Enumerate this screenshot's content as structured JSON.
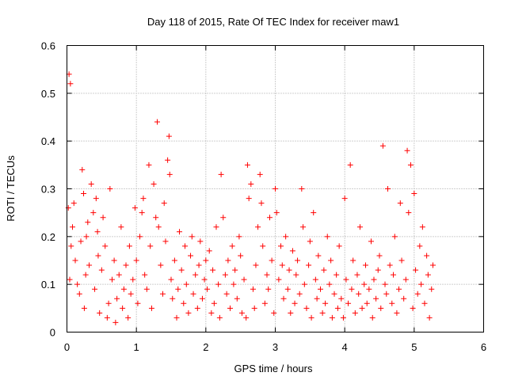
{
  "chart_data": {
    "type": "scatter",
    "title": "Day 118 of 2015, Rate Of TEC Index for receiver maw1",
    "xlabel": "GPS time / hours",
    "ylabel": "ROTI / TECUs",
    "xlim": [
      0,
      6
    ],
    "ylim": [
      0,
      0.6
    ],
    "x_ticks": [
      0,
      1,
      2,
      3,
      4,
      5,
      6
    ],
    "x_tick_labels": [
      "0",
      "1",
      "2",
      "3",
      "4",
      "5",
      "6"
    ],
    "y_ticks": [
      0,
      0.1,
      0.2,
      0.3,
      0.4,
      0.5,
      0.6
    ],
    "y_tick_labels": [
      "0",
      "0.1",
      "0.2",
      "0.3",
      "0.4",
      "0.5",
      "0.6"
    ],
    "grid": true,
    "marker": "+",
    "series_color": "#ff0000",
    "series": [
      {
        "name": "ROTI",
        "x": [
          0.02,
          0.03,
          0.05,
          0.04,
          0.06,
          0.08,
          0.1,
          0.12,
          0.15,
          0.18,
          0.2,
          0.22,
          0.24,
          0.25,
          0.27,
          0.28,
          0.3,
          0.32,
          0.35,
          0.38,
          0.4,
          0.42,
          0.44,
          0.45,
          0.47,
          0.5,
          0.52,
          0.55,
          0.58,
          0.6,
          0.62,
          0.65,
          0.68,
          0.7,
          0.72,
          0.75,
          0.78,
          0.8,
          0.82,
          0.85,
          0.88,
          0.9,
          0.92,
          0.95,
          0.98,
          1.0,
          1.02,
          1.05,
          1.08,
          1.1,
          1.12,
          1.15,
          1.18,
          1.2,
          1.22,
          1.25,
          1.28,
          1.3,
          1.32,
          1.35,
          1.38,
          1.4,
          1.42,
          1.45,
          1.47,
          1.48,
          1.5,
          1.52,
          1.55,
          1.58,
          1.6,
          1.62,
          1.65,
          1.68,
          1.7,
          1.72,
          1.75,
          1.78,
          1.8,
          1.82,
          1.85,
          1.88,
          1.9,
          1.92,
          1.95,
          1.98,
          2.0,
          2.02,
          2.05,
          2.08,
          2.1,
          2.12,
          2.15,
          2.18,
          2.2,
          2.22,
          2.25,
          2.28,
          2.3,
          2.32,
          2.35,
          2.38,
          2.4,
          2.42,
          2.45,
          2.48,
          2.5,
          2.52,
          2.55,
          2.58,
          2.6,
          2.62,
          2.65,
          2.68,
          2.7,
          2.72,
          2.75,
          2.78,
          2.8,
          2.82,
          2.85,
          2.88,
          2.9,
          2.92,
          2.95,
          2.98,
          3.0,
          3.02,
          3.05,
          3.08,
          3.1,
          3.12,
          3.15,
          3.18,
          3.2,
          3.22,
          3.25,
          3.28,
          3.3,
          3.32,
          3.35,
          3.38,
          3.4,
          3.42,
          3.45,
          3.48,
          3.5,
          3.52,
          3.55,
          3.58,
          3.6,
          3.62,
          3.65,
          3.68,
          3.7,
          3.72,
          3.75,
          3.78,
          3.8,
          3.82,
          3.85,
          3.88,
          3.9,
          3.92,
          3.95,
          3.98,
          4.0,
          4.02,
          4.05,
          4.08,
          4.1,
          4.12,
          4.15,
          4.18,
          4.2,
          4.22,
          4.25,
          4.28,
          4.3,
          4.32,
          4.35,
          4.38,
          4.4,
          4.42,
          4.45,
          4.48,
          4.5,
          4.52,
          4.55,
          4.58,
          4.6,
          4.62,
          4.65,
          4.68,
          4.7,
          4.72,
          4.75,
          4.78,
          4.8,
          4.82,
          4.85,
          4.88,
          4.9,
          4.92,
          4.95,
          4.98,
          5.0,
          5.02,
          5.05,
          5.08,
          5.1,
          5.12,
          5.15,
          5.18,
          5.2,
          5.22,
          5.25,
          5.27
        ],
        "y": [
          0.26,
          0.54,
          0.52,
          0.11,
          0.18,
          0.22,
          0.27,
          0.15,
          0.1,
          0.08,
          0.19,
          0.34,
          0.29,
          0.05,
          0.12,
          0.2,
          0.23,
          0.14,
          0.31,
          0.25,
          0.09,
          0.28,
          0.21,
          0.16,
          0.04,
          0.13,
          0.24,
          0.18,
          0.03,
          0.06,
          0.3,
          0.11,
          0.15,
          0.02,
          0.07,
          0.12,
          0.22,
          0.05,
          0.09,
          0.14,
          0.03,
          0.18,
          0.08,
          0.11,
          0.26,
          0.15,
          0.06,
          0.2,
          0.25,
          0.28,
          0.12,
          0.09,
          0.35,
          0.18,
          0.05,
          0.31,
          0.24,
          0.44,
          0.22,
          0.14,
          0.08,
          0.27,
          0.19,
          0.36,
          0.41,
          0.33,
          0.11,
          0.07,
          0.15,
          0.03,
          0.09,
          0.21,
          0.13,
          0.06,
          0.18,
          0.1,
          0.04,
          0.16,
          0.2,
          0.08,
          0.12,
          0.05,
          0.14,
          0.19,
          0.07,
          0.11,
          0.15,
          0.09,
          0.17,
          0.04,
          0.13,
          0.06,
          0.22,
          0.1,
          0.03,
          0.33,
          0.24,
          0.12,
          0.08,
          0.15,
          0.05,
          0.18,
          0.1,
          0.13,
          0.07,
          0.2,
          0.16,
          0.04,
          0.11,
          0.03,
          0.35,
          0.28,
          0.31,
          0.09,
          0.05,
          0.14,
          0.22,
          0.33,
          0.27,
          0.18,
          0.06,
          0.12,
          0.09,
          0.24,
          0.15,
          0.04,
          0.3,
          0.25,
          0.11,
          0.18,
          0.14,
          0.07,
          0.2,
          0.09,
          0.13,
          0.04,
          0.17,
          0.06,
          0.12,
          0.15,
          0.08,
          0.3,
          0.22,
          0.1,
          0.05,
          0.14,
          0.19,
          0.03,
          0.25,
          0.11,
          0.07,
          0.16,
          0.09,
          0.04,
          0.13,
          0.06,
          0.2,
          0.1,
          0.15,
          0.03,
          0.08,
          0.12,
          0.05,
          0.18,
          0.07,
          0.03,
          0.28,
          0.11,
          0.06,
          0.35,
          0.09,
          0.15,
          0.04,
          0.12,
          0.08,
          0.22,
          0.05,
          0.1,
          0.14,
          0.06,
          0.09,
          0.19,
          0.03,
          0.11,
          0.07,
          0.13,
          0.16,
          0.05,
          0.39,
          0.1,
          0.08,
          0.3,
          0.14,
          0.06,
          0.12,
          0.2,
          0.04,
          0.09,
          0.27,
          0.15,
          0.07,
          0.11,
          0.38,
          0.25,
          0.35,
          0.05,
          0.29,
          0.13,
          0.08,
          0.18,
          0.1,
          0.22,
          0.06,
          0.16,
          0.12,
          0.03,
          0.09,
          0.14
        ]
      }
    ]
  }
}
